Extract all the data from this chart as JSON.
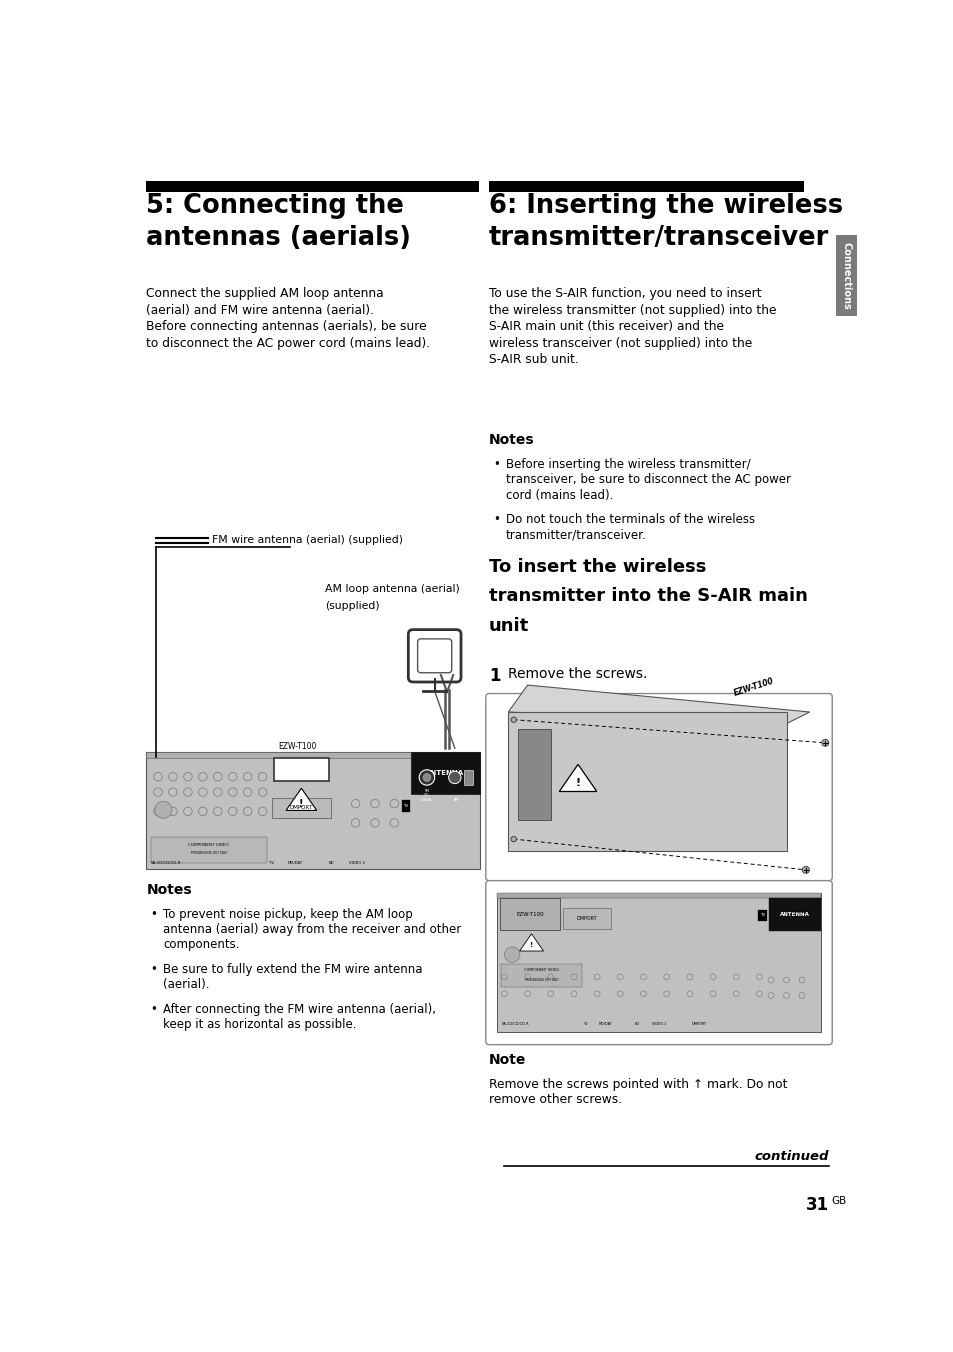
{
  "bg_color": "#ffffff",
  "page_width": 9.54,
  "page_height": 13.52,
  "left_title_line1": "5: Connecting the",
  "left_title_line2": "antennas (aerials)",
  "right_title_line1": "6: Inserting the wireless",
  "right_title_line2": "transmitter/transceiver",
  "sidebar_text": "Connections",
  "sidebar_color": "#7a7a7a",
  "left_body_lines": [
    "Connect the supplied AM loop antenna",
    "(aerial) and FM wire antenna (aerial).",
    "Before connecting antennas (aerials), be sure",
    "to disconnect the AC power cord (mains lead)."
  ],
  "right_body_lines": [
    "To use the S-AIR function, you need to insert",
    "the wireless transmitter (not supplied) into the",
    "S-AIR main unit (this receiver) and the",
    "wireless transceiver (not supplied) into the",
    "S-AIR sub unit."
  ],
  "notes_left_title": "Notes",
  "notes_left": [
    "To prevent noise pickup, keep the AM loop\nantenna (aerial) away from the receiver and other\ncomponents.",
    "Be sure to fully extend the FM wire antenna\n(aerial).",
    "After connecting the FM wire antenna (aerial),\nkeep it as horizontal as possible."
  ],
  "notes_right_title": "Notes",
  "notes_right": [
    "Before inserting the wireless transmitter/\ntransceiver, be sure to disconnect the AC power\ncord (mains lead).",
    "Do not touch the terminals of the wireless\ntransmitter/transceiver."
  ],
  "insert_title_lines": [
    "To insert the wireless",
    "transmitter into the S-AIR main",
    "unit"
  ],
  "step1": "Remove the screws.",
  "note_bottom_title": "Note",
  "note_bottom_lines": [
    "Remove the screws pointed with ↑ mark. Do not",
    "remove other screws."
  ],
  "continued_text": "continued",
  "page_number": "31",
  "page_suffix": "GB",
  "fm_label": "FM wire antenna (aerial) (supplied)",
  "am_label_line1": "AM loop antenna (aerial)",
  "am_label_line2": "(supplied)",
  "black_bar_color": "#000000",
  "device_gray": "#c8c8c8",
  "device_gray2": "#d0d0d0",
  "antenna_black": "#1a1a1a"
}
